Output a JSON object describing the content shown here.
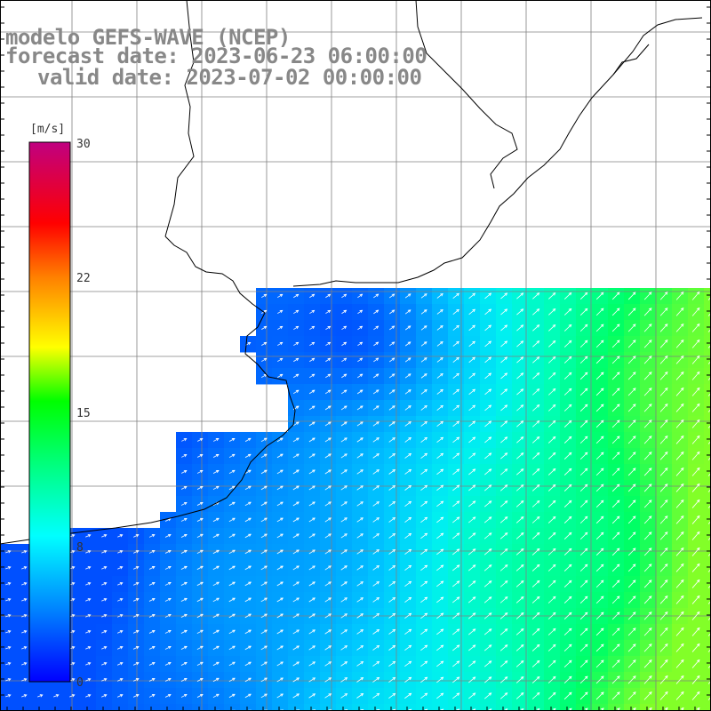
{
  "title": {
    "model": "modelo GEFS-WAVE (NCEP)",
    "forecast": "forecast date: 2023-06-23 06:00:00",
    "valid": "valid date: 2023-07-02 00:00:00"
  },
  "colorbar": {
    "unit": "[m/s]",
    "range": [
      0,
      30
    ],
    "ticks": [
      "30",
      "22",
      "15",
      "8",
      "0"
    ],
    "colors": [
      "#0000ff",
      "#0080ff",
      "#00ffff",
      "#00ff00",
      "#ffff00",
      "#ff8000",
      "#ff0000",
      "#ff0080",
      "#c00080"
    ]
  },
  "map": {
    "variable": "wind speed",
    "unit": "m/s",
    "field_range_shown": [
      4,
      14
    ],
    "low_wind_color": "#0050ff",
    "high_wind_color": "#7cff30",
    "land_color": "#ffffff",
    "coastline_color": "#000000",
    "graticule_color": "#808080",
    "arrow_color": "#ffffff",
    "prevailing_direction": "southwesterly"
  }
}
